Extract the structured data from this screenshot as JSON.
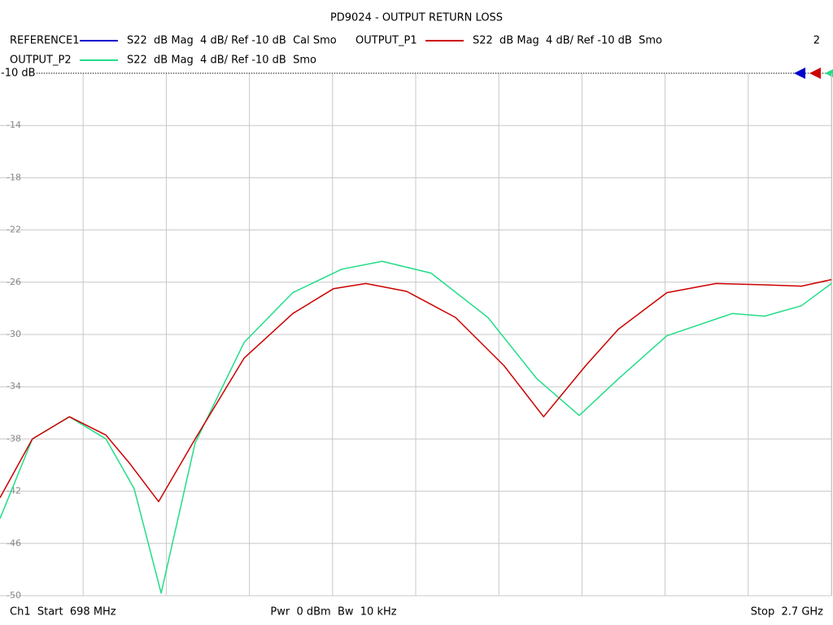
{
  "chart_data": {
    "type": "line",
    "title": "PD9024 - OUTPUT RETURN LOSS",
    "reference_label": "-10 dB",
    "trace_count": "2",
    "footer_left": "Ch1  Start  698 MHz",
    "footer_center": "Pwr  0 dBm  Bw  10 kHz",
    "footer_right": "Stop  2.7 GHz",
    "xlim": [
      698,
      2700
    ],
    "x_divisions": 10,
    "ylim": [
      -50,
      -10
    ],
    "yticks": [
      -10,
      -14,
      -18,
      -22,
      -26,
      -30,
      -34,
      -38,
      -42,
      -46,
      -50
    ],
    "grid": true,
    "series": [
      {
        "name": "REFERENCE1",
        "description": "S22  dB Mag  4 dB/ Ref -10 dB  Cal Smo",
        "color": "#0000cc",
        "x": [],
        "values": []
      },
      {
        "name": "OUTPUT_P1",
        "description": "S22  dB Mag  4 dB/ Ref -10 dB  Smo",
        "color": "#cc0000",
        "x": [
          698,
          776,
          865,
          953,
          1011,
          1080,
          1168,
          1286,
          1403,
          1501,
          1579,
          1677,
          1795,
          1912,
          2007,
          2108,
          2187,
          2304,
          2422,
          2539,
          2628,
          2700
        ],
        "values": [
          -42.5,
          -38.0,
          -36.3,
          -37.7,
          -39.9,
          -42.8,
          -38.0,
          -31.8,
          -28.4,
          -26.5,
          -26.1,
          -26.7,
          -28.7,
          -32.4,
          -36.3,
          -32.4,
          -29.6,
          -26.8,
          -26.1,
          -26.2,
          -26.3,
          -25.8
        ]
      },
      {
        "name": "OUTPUT_P2",
        "description": "S22  dB Mag  4 dB/ Ref -10 dB  Smo",
        "color": "#22dd88",
        "x": [
          698,
          776,
          865,
          953,
          1021,
          1086,
          1168,
          1286,
          1403,
          1521,
          1618,
          1736,
          1873,
          1991,
          2093,
          2187,
          2304,
          2461,
          2539,
          2628,
          2700
        ],
        "values": [
          -44.1,
          -38.0,
          -36.3,
          -38.0,
          -41.8,
          -49.8,
          -38.3,
          -30.6,
          -26.8,
          -25.0,
          -24.4,
          -25.3,
          -28.7,
          -33.4,
          -36.2,
          -33.4,
          -30.1,
          -28.4,
          -28.6,
          -27.8,
          -26.1
        ]
      }
    ]
  }
}
